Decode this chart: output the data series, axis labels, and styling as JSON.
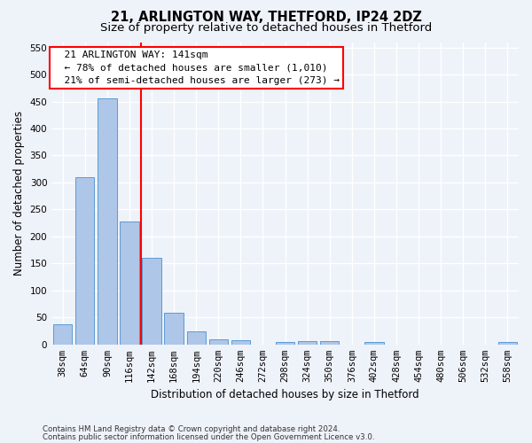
{
  "title": "21, ARLINGTON WAY, THETFORD, IP24 2DZ",
  "subtitle": "Size of property relative to detached houses in Thetford",
  "xlabel": "Distribution of detached houses by size in Thetford",
  "ylabel": "Number of detached properties",
  "bar_labels": [
    "38sqm",
    "64sqm",
    "90sqm",
    "116sqm",
    "142sqm",
    "168sqm",
    "194sqm",
    "220sqm",
    "246sqm",
    "272sqm",
    "298sqm",
    "324sqm",
    "350sqm",
    "376sqm",
    "402sqm",
    "428sqm",
    "454sqm",
    "480sqm",
    "506sqm",
    "532sqm",
    "558sqm"
  ],
  "bar_values": [
    38,
    310,
    455,
    228,
    160,
    58,
    25,
    10,
    8,
    0,
    5,
    6,
    6,
    0,
    5,
    0,
    0,
    0,
    0,
    0,
    4
  ],
  "bar_color": "#aec6e8",
  "bar_edge_color": "#5b9bd5",
  "ylim": [
    0,
    560
  ],
  "yticks": [
    0,
    50,
    100,
    150,
    200,
    250,
    300,
    350,
    400,
    450,
    500,
    550
  ],
  "red_line_index": 4,
  "annotation_line1": "  21 ARLINGTON WAY: 141sqm",
  "annotation_line2": "  ← 78% of detached houses are smaller (1,010)",
  "annotation_line3": "  21% of semi-detached houses are larger (273) →",
  "footnote1": "Contains HM Land Registry data © Crown copyright and database right 2024.",
  "footnote2": "Contains public sector information licensed under the Open Government Licence v3.0.",
  "bg_color": "#eef2f9",
  "plot_bg_color": "#eef2f9",
  "grid_color": "#ffffff",
  "title_fontsize": 10.5,
  "subtitle_fontsize": 9.5,
  "annotation_fontsize": 8,
  "tick_fontsize": 7.5,
  "ylabel_fontsize": 8.5,
  "xlabel_fontsize": 8.5
}
